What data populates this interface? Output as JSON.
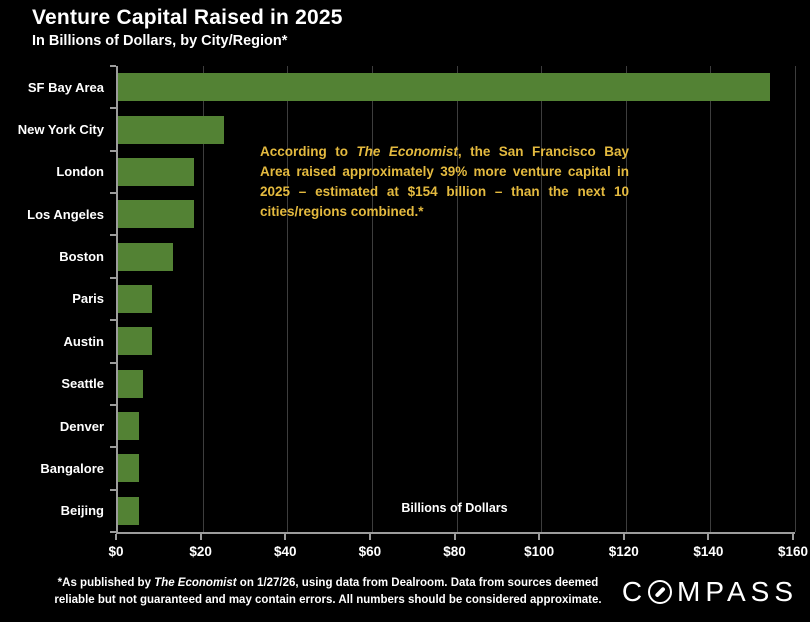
{
  "header": {
    "title": "Venture Capital Raised in 2025",
    "subtitle": "In Billions of Dollars, by City/Region*"
  },
  "chart_data": {
    "type": "bar",
    "orientation": "horizontal",
    "title": "Venture Capital Raised in 2025",
    "subtitle": "In Billions of Dollars, by City/Region*",
    "categories": [
      "SF Bay Area",
      "New York City",
      "London",
      "Los Angeles",
      "Boston",
      "Paris",
      "Austin",
      "Seattle",
      "Denver",
      "Bangalore",
      "Beijing"
    ],
    "values": [
      154,
      25,
      18,
      18,
      13,
      8,
      8,
      6,
      5,
      5,
      5
    ],
    "xlabel": "Billions of Dollars",
    "xlim": [
      0,
      160
    ],
    "x_tick_values": [
      0,
      20,
      40,
      60,
      80,
      100,
      120,
      140,
      160
    ],
    "x_tick_labels": [
      "$0",
      "$20",
      "$40",
      "$60",
      "$80",
      "$100",
      "$120",
      "$140",
      "$160"
    ],
    "grid": true,
    "legend": false,
    "bar_color": "#538234"
  },
  "annotation": {
    "color": "#E4BA3F",
    "parts": [
      {
        "text": "According to ",
        "italic": false
      },
      {
        "text": "The Economist",
        "italic": true
      },
      {
        "text": ", the San Francisco Bay Area raised approximately 39% more venture capital in 2025 – estimated at $154 billion – than the next 10 cities/regions combined.*",
        "italic": false
      }
    ]
  },
  "footnote": {
    "parts": [
      {
        "text": "*As published by ",
        "italic": false
      },
      {
        "text": "The Economist",
        "italic": true
      },
      {
        "text": " on 1/27/26, using data from Dealroom. Data from sources deemed reliable but not guaranteed and may contain errors. All numbers should be considered approximate.",
        "italic": false
      }
    ]
  },
  "logo": {
    "pre": "C",
    "post": "MPASS"
  },
  "colors": {
    "background": "#000000",
    "bar": "#538234",
    "text": "#FFFFFF",
    "annotation_text": "#E4BA3F",
    "axis": "#9C9C9C",
    "gridline": "#3D3D3D"
  }
}
